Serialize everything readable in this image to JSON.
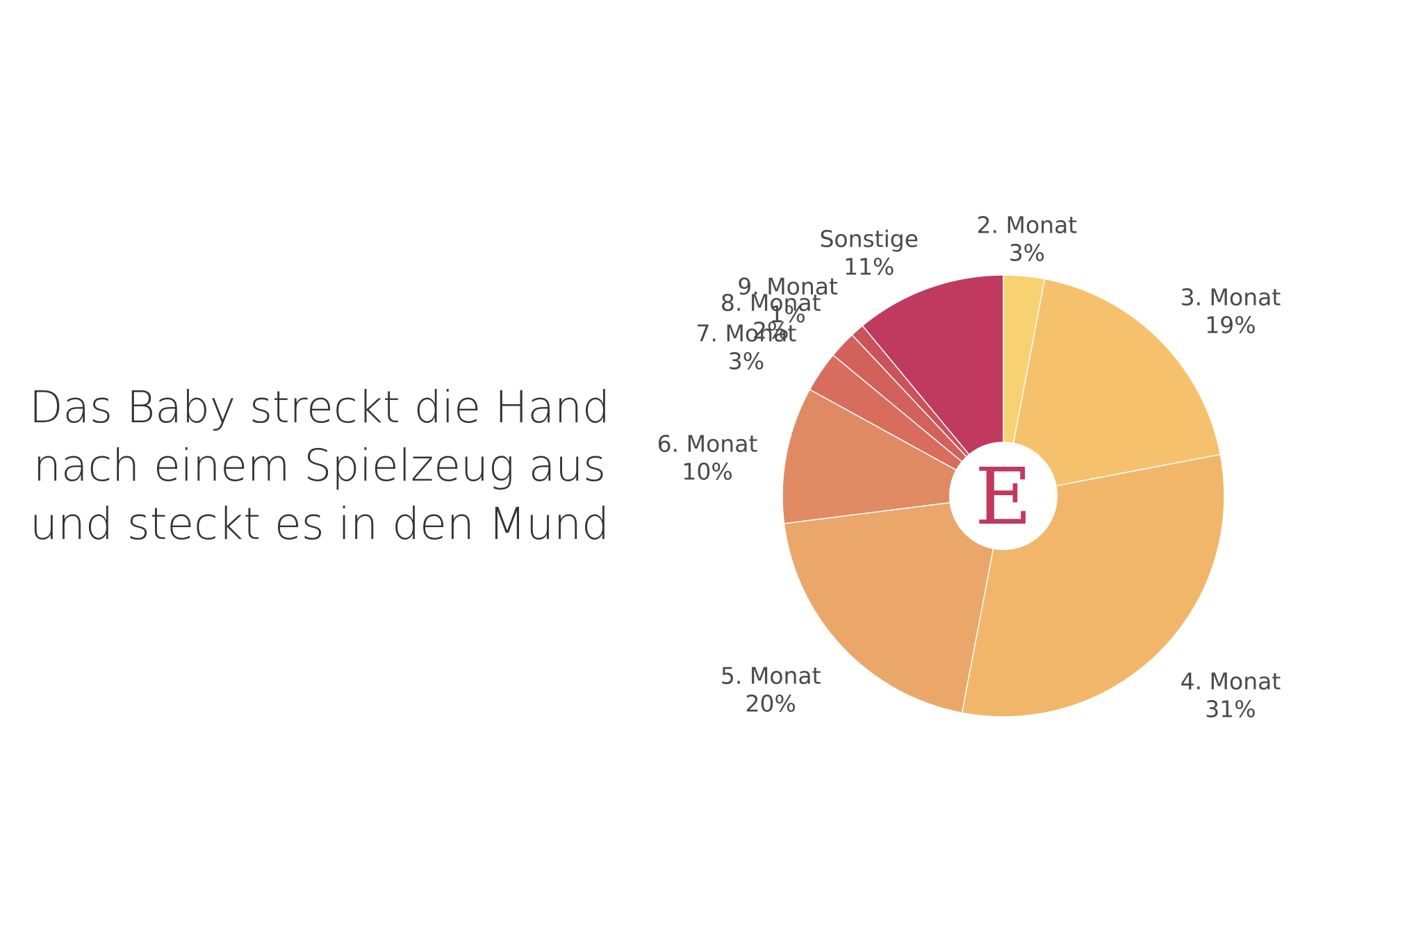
{
  "title_lines": [
    "Das Baby streckt die Hand",
    "nach einem Spielzeug aus",
    "und steckt es in den Mund"
  ],
  "logo": {
    "letter": "E",
    "color": "#c0395e"
  },
  "chart_data": {
    "type": "pie",
    "categories": [
      "2. Monat",
      "3. Monat",
      "4. Monat",
      "5. Monat",
      "6. Monat",
      "7. Monat",
      "8. Monat",
      "9. Monat",
      "Sonstige"
    ],
    "values": [
      3,
      19,
      31,
      20,
      10,
      3,
      2,
      1,
      11
    ],
    "labels": [
      "3%",
      "19%",
      "31%",
      "20%",
      "10%",
      "3%",
      "2%",
      "1%",
      "11%"
    ],
    "colors": [
      "#f8d170",
      "#f6c16c",
      "#f2b66a",
      "#eba669",
      "#e08a64",
      "#d86d5e",
      "#d2615c",
      "#c9525b",
      "#bf3a5e"
    ],
    "start": "12 o'clock",
    "direction": "clockwise",
    "donut_hole": true
  }
}
